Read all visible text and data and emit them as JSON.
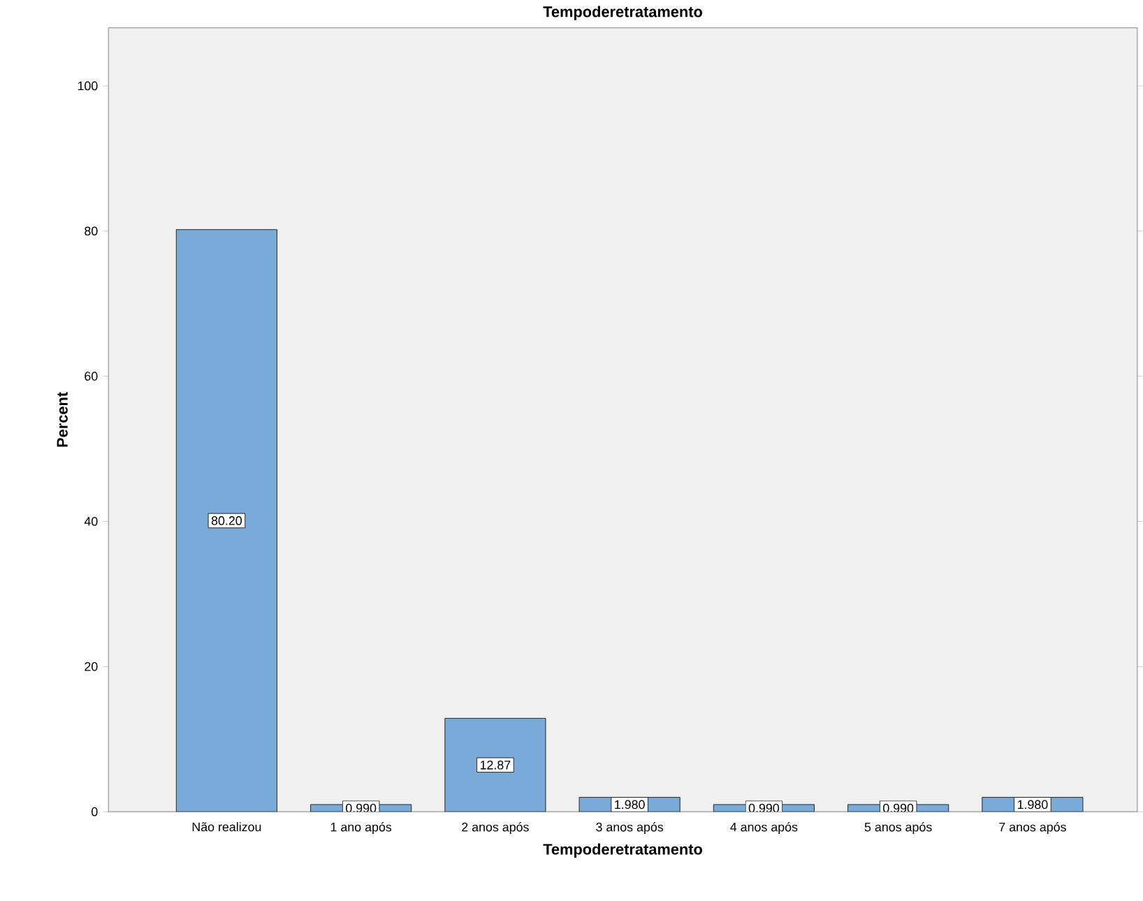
{
  "chart_data": {
    "type": "bar",
    "title": "Tempoderetratamento",
    "xlabel": "Tempoderetratamento",
    "ylabel": "Percent",
    "categories": [
      "Não realizou",
      "1 ano após",
      "2 anos após",
      "3 anos após",
      "4 anos após",
      "5 anos após",
      "7 anos após"
    ],
    "values": [
      80.2,
      0.99,
      12.87,
      1.98,
      0.99,
      0.99,
      1.98
    ],
    "value_labels": [
      "80.20",
      "0.990",
      "12.87",
      "1.980",
      "0.990",
      "0.990",
      "1.980"
    ],
    "color": "#7aaad8",
    "ylim": [
      0,
      108
    ],
    "yticks": [
      0,
      20,
      40,
      60,
      80,
      100
    ]
  }
}
